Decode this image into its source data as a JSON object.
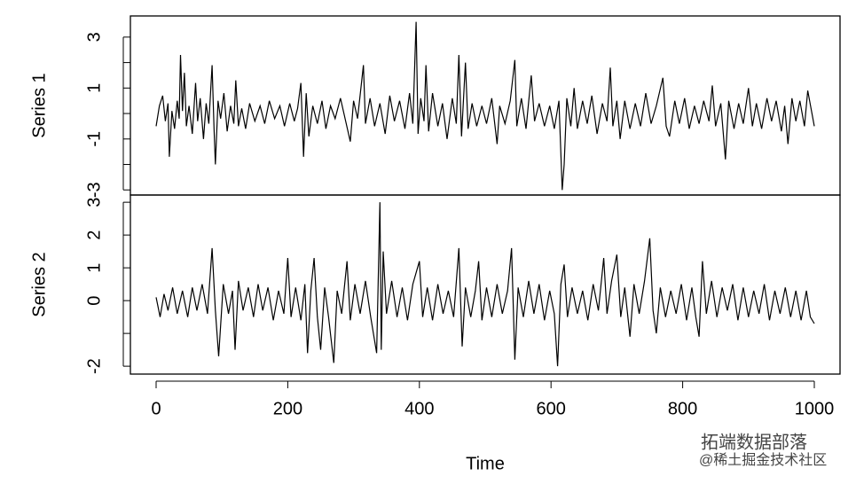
{
  "chart_data": [
    {
      "type": "line",
      "ylabel": "Series 1",
      "color": "#000000",
      "xlim": [
        -39.1,
        1039.1
      ],
      "ylim": [
        -3.2,
        3.83
      ],
      "yticks": [
        -3,
        -1,
        1,
        3
      ],
      "yminorticks": [
        -3,
        -2,
        -1,
        0,
        1,
        2,
        3
      ],
      "x": [
        0,
        5,
        10,
        14,
        18,
        20,
        24,
        28,
        32,
        35,
        37,
        40,
        43,
        46,
        50,
        55,
        60,
        63,
        67,
        72,
        76,
        80,
        85,
        88,
        90,
        94,
        98,
        103,
        108,
        113,
        118,
        121,
        125,
        130,
        136,
        142,
        150,
        158,
        165,
        172,
        180,
        188,
        195,
        203,
        210,
        215,
        220,
        224,
        228,
        232,
        238,
        245,
        252,
        258,
        265,
        272,
        280,
        288,
        295,
        300,
        306,
        315,
        318,
        325,
        332,
        340,
        348,
        355,
        362,
        370,
        378,
        385,
        390,
        395,
        398,
        402,
        407,
        410,
        414,
        420,
        428,
        435,
        442,
        450,
        456,
        460,
        464,
        470,
        474,
        480,
        487,
        495,
        502,
        510,
        518,
        522,
        530,
        538,
        545,
        548,
        555,
        562,
        570,
        575,
        582,
        590,
        598,
        605,
        612,
        617,
        620,
        624,
        630,
        635,
        640,
        648,
        655,
        662,
        670,
        678,
        685,
        690,
        694,
        700,
        705,
        712,
        720,
        728,
        736,
        744,
        752,
        760,
        770,
        775,
        780,
        788,
        795,
        803,
        810,
        818,
        825,
        832,
        840,
        845,
        850,
        858,
        865,
        870,
        878,
        885,
        892,
        900,
        906,
        912,
        920,
        928,
        935,
        942,
        950,
        955,
        960,
        966,
        972,
        978,
        985,
        990,
        995,
        1000
      ],
      "values": [
        -0.5,
        0.3,
        0.7,
        -0.3,
        0.4,
        -1.7,
        0.1,
        -0.6,
        0.5,
        -0.2,
        2.3,
        0.1,
        1.6,
        -0.5,
        0.3,
        -0.8,
        1.2,
        -0.3,
        0.6,
        -1.0,
        0.4,
        -0.4,
        1.9,
        -0.6,
        -2.0,
        0.5,
        -0.2,
        0.8,
        -0.7,
        0.3,
        -0.4,
        1.3,
        -0.5,
        0.2,
        -0.6,
        0.4,
        -0.3,
        0.3,
        -0.4,
        0.5,
        -0.2,
        0.3,
        -0.5,
        0.4,
        -0.3,
        0.2,
        1.2,
        -1.7,
        0.8,
        -0.9,
        0.3,
        -0.4,
        0.5,
        -0.6,
        0.3,
        -0.2,
        0.6,
        -0.3,
        -1.1,
        0.5,
        -0.2,
        1.9,
        -0.4,
        0.6,
        -0.5,
        0.4,
        -0.8,
        0.7,
        -0.3,
        0.5,
        -0.6,
        0.8,
        -0.4,
        3.6,
        -0.8,
        0.6,
        -0.3,
        1.9,
        -0.7,
        0.8,
        -0.5,
        0.4,
        -1.0,
        0.6,
        -0.4,
        2.3,
        -0.9,
        2.0,
        -0.6,
        0.4,
        -0.5,
        0.3,
        -0.4,
        0.6,
        -1.2,
        0.3,
        -0.4,
        0.5,
        2.1,
        -0.5,
        0.6,
        -0.6,
        1.5,
        -0.3,
        0.4,
        -0.5,
        0.3,
        -0.6,
        0.5,
        -3.0,
        -2.0,
        0.6,
        -0.5,
        1.0,
        -0.6,
        0.5,
        -0.4,
        0.7,
        -0.8,
        0.4,
        -0.3,
        1.8,
        -0.5,
        0.5,
        -1.0,
        0.5,
        -0.6,
        0.4,
        -0.5,
        0.8,
        -0.4,
        0.3,
        1.4,
        -0.5,
        -0.9,
        0.5,
        -0.4,
        0.6,
        -0.6,
        0.3,
        -0.4,
        0.5,
        -0.3,
        1.1,
        -0.5,
        0.4,
        -1.8,
        0.5,
        -0.6,
        0.4,
        -0.4,
        1.0,
        -0.5,
        0.4,
        -0.6,
        0.6,
        -0.3,
        0.5,
        -0.7,
        0.3,
        -1.2,
        0.6,
        -0.3,
        0.5,
        -0.5,
        0.9,
        0.2,
        -0.5
      ]
    },
    {
      "type": "line",
      "ylabel": "Series 2",
      "xlabel": "Time",
      "color": "#000000",
      "xlim": [
        -39.1,
        1039.1
      ],
      "ylim": [
        -2.24,
        3.22
      ],
      "yticks": [
        -2,
        0,
        1,
        2,
        3
      ],
      "yminorticks": [
        -2,
        -1,
        0,
        1,
        2,
        3
      ],
      "xticks": [
        0,
        200,
        400,
        600,
        800,
        1000
      ],
      "x": [
        0,
        6,
        12,
        18,
        25,
        32,
        40,
        48,
        55,
        62,
        70,
        78,
        85,
        90,
        95,
        102,
        110,
        116,
        120,
        125,
        132,
        140,
        148,
        155,
        162,
        170,
        178,
        186,
        194,
        200,
        205,
        212,
        220,
        226,
        230,
        235,
        240,
        245,
        250,
        256,
        262,
        270,
        275,
        282,
        290,
        295,
        302,
        310,
        318,
        326,
        335,
        340,
        342,
        345,
        350,
        358,
        366,
        374,
        382,
        390,
        400,
        405,
        412,
        420,
        428,
        436,
        444,
        452,
        460,
        465,
        470,
        478,
        485,
        490,
        495,
        502,
        510,
        518,
        526,
        534,
        540,
        545,
        550,
        558,
        566,
        574,
        582,
        590,
        598,
        605,
        610,
        615,
        620,
        625,
        632,
        640,
        648,
        656,
        664,
        672,
        680,
        685,
        692,
        700,
        706,
        712,
        720,
        726,
        734,
        742,
        750,
        755,
        760,
        766,
        774,
        782,
        790,
        798,
        806,
        814,
        820,
        825,
        830,
        836,
        844,
        852,
        860,
        868,
        876,
        884,
        892,
        900,
        908,
        916,
        924,
        932,
        940,
        948,
        956,
        964,
        972,
        980,
        988,
        994,
        1000
      ],
      "values": [
        0.1,
        -0.5,
        0.2,
        -0.3,
        0.4,
        -0.4,
        0.3,
        -0.5,
        0.4,
        -0.3,
        0.5,
        -0.4,
        1.6,
        -0.3,
        -1.7,
        0.5,
        -0.4,
        0.3,
        -1.5,
        0.6,
        -0.3,
        0.4,
        -0.5,
        0.5,
        -0.3,
        0.4,
        -0.6,
        0.3,
        -0.4,
        1.3,
        -0.5,
        0.4,
        -0.6,
        0.5,
        -1.6,
        0.3,
        1.3,
        -0.5,
        -1.5,
        0.4,
        -0.5,
        -1.9,
        0.3,
        -0.4,
        1.2,
        -0.6,
        0.5,
        -0.4,
        0.6,
        -0.5,
        -1.6,
        3.0,
        -1.5,
        1.5,
        -0.4,
        0.6,
        -0.5,
        0.4,
        -0.6,
        0.5,
        1.2,
        -0.5,
        0.4,
        -0.6,
        0.5,
        -0.4,
        0.3,
        -0.5,
        1.6,
        -1.4,
        0.4,
        -0.5,
        0.3,
        1.2,
        -0.6,
        0.4,
        -0.5,
        0.5,
        -0.4,
        0.3,
        1.6,
        -1.8,
        0.4,
        -0.5,
        0.6,
        -0.4,
        0.5,
        -0.6,
        0.3,
        -0.4,
        -2.0,
        0.5,
        1.1,
        -0.5,
        0.4,
        -0.4,
        0.3,
        -0.6,
        0.5,
        -0.3,
        1.3,
        -0.4,
        0.6,
        1.4,
        -0.5,
        0.4,
        -1.1,
        0.5,
        -0.4,
        0.6,
        1.9,
        -0.3,
        -1.0,
        0.4,
        -0.5,
        0.3,
        -0.4,
        0.5,
        -0.6,
        0.4,
        -0.5,
        -1.1,
        1.2,
        -0.4,
        0.6,
        -0.5,
        0.4,
        -0.3,
        0.5,
        -0.6,
        0.4,
        -0.5,
        0.3,
        -0.4,
        0.5,
        -0.6,
        0.3,
        -0.4,
        0.4,
        -0.5,
        0.3,
        -0.6,
        0.3,
        -0.5,
        -0.7
      ]
    }
  ],
  "watermark": {
    "line1": "拓端数据部落",
    "line2": "@稀土掘金技术社区"
  }
}
